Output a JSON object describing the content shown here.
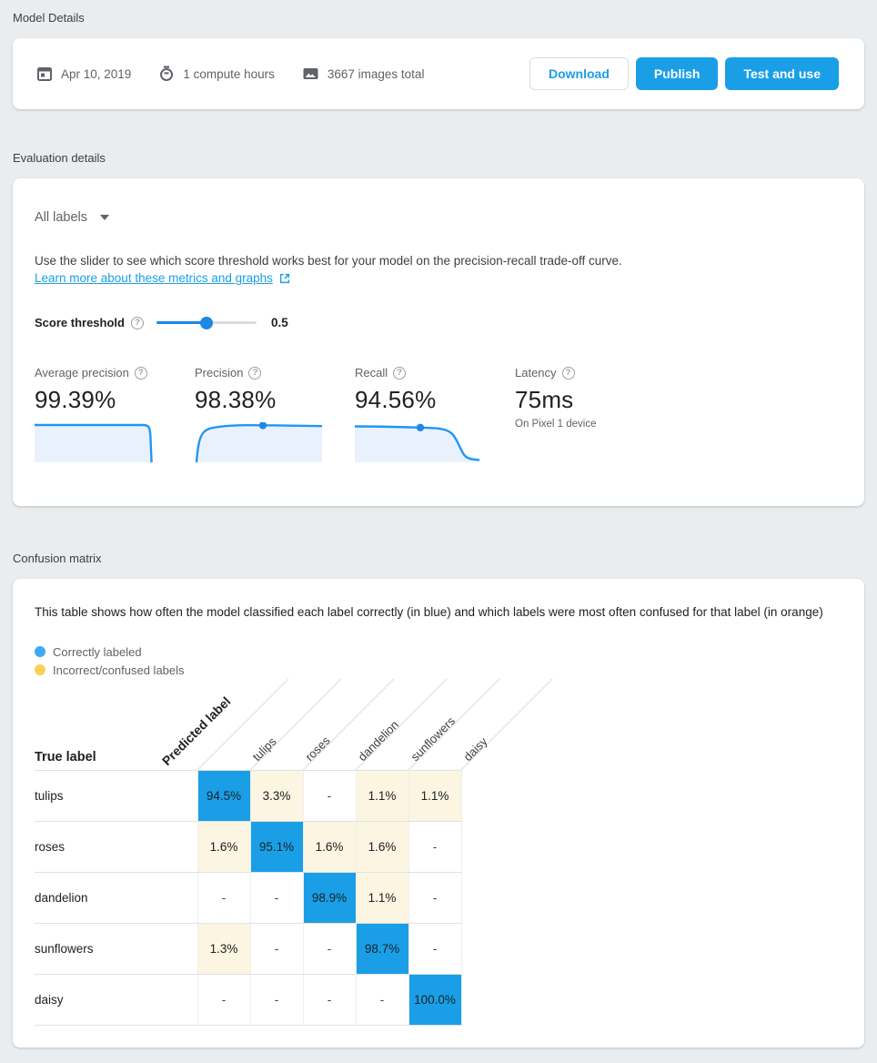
{
  "model_details": {
    "section_title": "Model Details",
    "created_date": "Apr 10, 2019",
    "compute_hours": "1 compute hours",
    "images_total": "3667 images total",
    "buttons": {
      "download": "Download",
      "publish": "Publish",
      "test_and_use": "Test and use"
    }
  },
  "evaluation": {
    "section_title": "Evaluation details",
    "labels_filter": "All labels",
    "description": "Use the slider to see which score threshold works best for your model on the precision-recall trade-off curve.",
    "learn_more_link": "Learn more about these metrics and graphs",
    "score_threshold": {
      "label": "Score threshold",
      "value": "0.5"
    },
    "metrics": [
      {
        "label": "Average precision",
        "value": "99.39%"
      },
      {
        "label": "Precision",
        "value": "98.38%"
      },
      {
        "label": "Recall",
        "value": "94.56%"
      },
      {
        "label": "Latency",
        "value": "75ms",
        "note": "On Pixel 1 device"
      }
    ]
  },
  "confusion": {
    "section_title": "Confusion matrix",
    "description": "This table shows how often the model classified each label correctly (in blue) and which labels were most often confused for that label (in orange)",
    "legend": [
      {
        "label": "Correctly labeled",
        "color": "#3FA9F5"
      },
      {
        "label": "Incorrect/confused labels",
        "color": "#FBD056"
      }
    ],
    "predicted_label_header": "Predicted label",
    "true_label_header": "True label",
    "columns": [
      "tulips",
      "roses",
      "dandelion",
      "sunflowers",
      "daisy"
    ],
    "rows": [
      {
        "label": "tulips",
        "values": [
          "94.5%",
          "3.3%",
          "-",
          "1.1%",
          "1.1%"
        ]
      },
      {
        "label": "roses",
        "values": [
          "1.6%",
          "95.1%",
          "1.6%",
          "1.6%",
          "-"
        ]
      },
      {
        "label": "dandelion",
        "values": [
          "-",
          "-",
          "98.9%",
          "1.1%",
          "-"
        ]
      },
      {
        "label": "sunflowers",
        "values": [
          "1.3%",
          "-",
          "-",
          "98.7%",
          "-"
        ]
      },
      {
        "label": "daisy",
        "values": [
          "-",
          "-",
          "-",
          "-",
          "100.0%"
        ]
      }
    ]
  },
  "colors": {
    "accent_blue": "#1A9FE6",
    "slider_blue": "#1E88E5",
    "correct_cell": "#1A9FE6",
    "confused_cell": "#FCF5E1",
    "page_background": "#E9EDF0"
  },
  "chart_data": [
    {
      "type": "line",
      "title": "Average precision sparkline",
      "description": "Precision-recall trade-off curve; stays near maximum across the range then drops sharply at the far right edge",
      "summary_metric": "Average precision",
      "summary_value_percent": 99.39
    },
    {
      "type": "line",
      "title": "Precision vs score threshold sparkline",
      "description": "Rises steeply from bottom-left then plateaus near maximum",
      "highlight_point": {
        "threshold": 0.5,
        "value_percent": 98.38
      }
    },
    {
      "type": "line",
      "title": "Recall vs score threshold sparkline",
      "description": "Plateaus near maximum then drops sharply near the right side",
      "highlight_point": {
        "threshold": 0.5,
        "value_percent": 94.56
      }
    },
    {
      "type": "heatmap",
      "title": "Confusion matrix",
      "x_axis": "Predicted label",
      "y_axis": "True label",
      "categories": [
        "tulips",
        "roses",
        "dandelion",
        "sunflowers",
        "daisy"
      ],
      "matrix_percent": [
        [
          94.5,
          3.3,
          null,
          1.1,
          1.1
        ],
        [
          1.6,
          95.1,
          1.6,
          1.6,
          null
        ],
        [
          null,
          null,
          98.9,
          1.1,
          null
        ],
        [
          1.3,
          null,
          null,
          98.7,
          null
        ],
        [
          null,
          null,
          null,
          null,
          100.0
        ]
      ]
    }
  ]
}
